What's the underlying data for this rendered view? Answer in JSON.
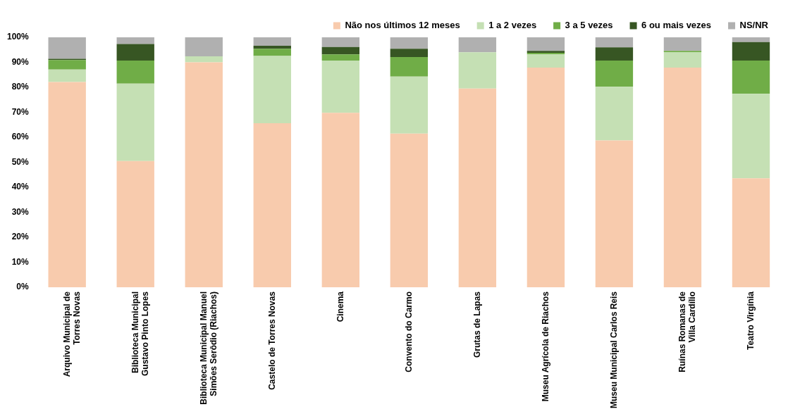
{
  "chart_data": {
    "type": "bar",
    "stacked": true,
    "legend": "top right",
    "grid": false,
    "categories": [
      "Arquivo Municipal de Torres Novas",
      "Biblioteca Municipal Gustavo Pinto Lopes",
      "Biblioteca Municipal Manuel Simões Serôdio (Riachos)",
      "Castelo de Torres Novas",
      "Cinema",
      "Convento do Carmo",
      "Grutas de Lapas",
      "Museu Agrícola de Riachos",
      "Museu Municipal Carlos Reis",
      "Ruínas Romanas de Villa Cardílio",
      "Teatro Virgínia"
    ],
    "series": [
      {
        "name": "Não nos últimos 12 meses",
        "color": "#f8cbad",
        "values": [
          82.1,
          50.5,
          90,
          65.6,
          69.8,
          61.5,
          79.5,
          87.9,
          58.7,
          87.9,
          43.6
        ]
      },
      {
        "name": "1 a 2 vezes",
        "color": "#c5e0b4",
        "values": [
          5,
          31,
          2.4,
          26.9,
          20.9,
          22.8,
          14.5,
          5.3,
          21.5,
          6.2,
          33.8
        ]
      },
      {
        "name": "3 a 5 vezes",
        "color": "#70ad47",
        "values": [
          3.8,
          9.2,
          0,
          2.9,
          2.5,
          7.8,
          0,
          0.6,
          10.5,
          0.5,
          13.3
        ]
      },
      {
        "name": "6 ou mais vezes",
        "color": "#375623",
        "values": [
          0.5,
          6.6,
          0,
          1.2,
          2.9,
          3.3,
          0,
          0.8,
          5.3,
          0,
          7.4
        ]
      },
      {
        "name": "NS/NR",
        "color": "#b0b0b0",
        "values": [
          8.6,
          2.7,
          7.6,
          3.4,
          3.9,
          4.6,
          6,
          5.4,
          4,
          5.4,
          1.9
        ]
      }
    ],
    "ylim": [
      0,
      100
    ],
    "yticks": [
      {
        "value": 0,
        "label": "0%"
      },
      {
        "value": 10,
        "label": "10%"
      },
      {
        "value": 20,
        "label": "20%"
      },
      {
        "value": 30,
        "label": "30%"
      },
      {
        "value": 40,
        "label": "40%"
      },
      {
        "value": 50,
        "label": "50%"
      },
      {
        "value": 60,
        "label": "60%"
      },
      {
        "value": 70,
        "label": "70%"
      },
      {
        "value": 80,
        "label": "80%"
      },
      {
        "value": 90,
        "label": "90%"
      },
      {
        "value": 100,
        "label": "100%"
      }
    ]
  }
}
